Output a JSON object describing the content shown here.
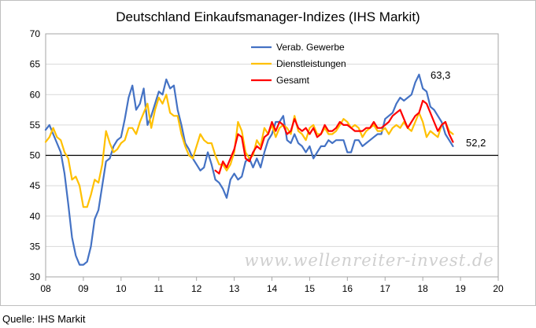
{
  "chart_data": {
    "type": "line",
    "title": "Deutschland Einkaufsmanager-Indizes (IHS Markit)",
    "xlabel": "",
    "ylabel": "",
    "xlim": [
      8,
      20
    ],
    "ylim": [
      30,
      70
    ],
    "x_ticks": [
      "08",
      "09",
      "10",
      "11",
      "12",
      "13",
      "14",
      "15",
      "16",
      "17",
      "18",
      "19",
      "20"
    ],
    "y_ticks": [
      "30",
      "35",
      "40",
      "45",
      "50",
      "55",
      "60",
      "65",
      "70"
    ],
    "reference_line": 50,
    "grid": "horizontal",
    "legend_position": "top-center",
    "series": [
      {
        "name": "Verab. Gewerbe",
        "color": "#4472c4",
        "x": [
          8.0,
          8.1,
          8.2,
          8.3,
          8.4,
          8.5,
          8.6,
          8.7,
          8.8,
          8.9,
          9.0,
          9.1,
          9.2,
          9.3,
          9.4,
          9.5,
          9.6,
          9.7,
          9.8,
          9.9,
          10.0,
          10.1,
          10.2,
          10.3,
          10.4,
          10.5,
          10.6,
          10.7,
          10.8,
          10.9,
          11.0,
          11.1,
          11.2,
          11.3,
          11.4,
          11.5,
          11.6,
          11.7,
          11.8,
          11.9,
          12.0,
          12.1,
          12.2,
          12.3,
          12.4,
          12.5,
          12.6,
          12.7,
          12.8,
          12.9,
          13.0,
          13.1,
          13.2,
          13.3,
          13.4,
          13.5,
          13.6,
          13.7,
          13.8,
          13.9,
          14.0,
          14.1,
          14.2,
          14.3,
          14.4,
          14.5,
          14.6,
          14.7,
          14.8,
          14.9,
          15.0,
          15.1,
          15.2,
          15.3,
          15.4,
          15.5,
          15.6,
          15.7,
          15.8,
          15.9,
          16.0,
          16.1,
          16.2,
          16.3,
          16.4,
          16.5,
          16.6,
          16.7,
          16.8,
          16.9,
          17.0,
          17.1,
          17.2,
          17.3,
          17.4,
          17.5,
          17.6,
          17.7,
          17.8,
          17.9,
          18.0,
          18.1,
          18.2,
          18.3,
          18.4,
          18.5,
          18.6,
          18.7,
          18.8
        ],
        "values": [
          54.2,
          55.0,
          53.5,
          52.0,
          50.5,
          47.0,
          42.0,
          36.5,
          33.5,
          32.0,
          32.0,
          32.5,
          35.0,
          39.5,
          41.0,
          45.0,
          49.0,
          49.5,
          51.5,
          52.5,
          53.0,
          56.0,
          59.5,
          61.5,
          57.5,
          58.5,
          61.0,
          55.0,
          56.5,
          58.5,
          60.5,
          60.0,
          62.5,
          61.0,
          61.5,
          57.5,
          55.0,
          52.0,
          51.0,
          49.5,
          48.5,
          47.5,
          48.0,
          50.5,
          48.5,
          46.0,
          45.5,
          44.5,
          43.0,
          46.0,
          47.0,
          46.0,
          46.5,
          49.0,
          49.5,
          48.0,
          49.5,
          48.0,
          50.5,
          52.5,
          53.5,
          55.5,
          55.5,
          56.5,
          52.5,
          52.0,
          53.5,
          52.0,
          51.5,
          50.5,
          51.5,
          49.5,
          50.5,
          51.5,
          51.5,
          52.5,
          52.0,
          52.5,
          52.5,
          52.5,
          50.5,
          50.5,
          52.5,
          52.5,
          51.5,
          52.0,
          52.5,
          53.0,
          53.5,
          53.5,
          56.0,
          56.5,
          57.0,
          58.5,
          59.5,
          59.0,
          59.5,
          60.0,
          62.0,
          63.3,
          61.0,
          60.5,
          58.0,
          57.5,
          56.5,
          55.5,
          53.5,
          52.5,
          51.5
        ]
      },
      {
        "name": "Dienstleistungen",
        "color": "#ffc000",
        "x": [
          8.0,
          8.1,
          8.2,
          8.3,
          8.4,
          8.5,
          8.6,
          8.7,
          8.8,
          8.9,
          9.0,
          9.1,
          9.2,
          9.3,
          9.4,
          9.5,
          9.6,
          9.7,
          9.8,
          9.9,
          10.0,
          10.1,
          10.2,
          10.3,
          10.4,
          10.5,
          10.6,
          10.7,
          10.8,
          10.9,
          11.0,
          11.1,
          11.2,
          11.3,
          11.4,
          11.5,
          11.6,
          11.7,
          11.8,
          11.9,
          12.0,
          12.1,
          12.2,
          12.3,
          12.4,
          12.5,
          12.6,
          12.7,
          12.8,
          12.9,
          13.0,
          13.1,
          13.2,
          13.3,
          13.4,
          13.5,
          13.6,
          13.7,
          13.8,
          13.9,
          14.0,
          14.1,
          14.2,
          14.3,
          14.4,
          14.5,
          14.6,
          14.7,
          14.8,
          14.9,
          15.0,
          15.1,
          15.2,
          15.3,
          15.4,
          15.5,
          15.6,
          15.7,
          15.8,
          15.9,
          16.0,
          16.1,
          16.2,
          16.3,
          16.4,
          16.5,
          16.6,
          16.7,
          16.8,
          16.9,
          17.0,
          17.1,
          17.2,
          17.3,
          17.4,
          17.5,
          17.6,
          17.7,
          17.8,
          17.9,
          18.0,
          18.1,
          18.2,
          18.3,
          18.4,
          18.5,
          18.6,
          18.7,
          18.8
        ],
        "values": [
          52.2,
          53.0,
          54.5,
          53.0,
          52.5,
          50.5,
          49.5,
          46.0,
          46.5,
          45.0,
          41.5,
          41.5,
          43.5,
          46.0,
          45.5,
          48.5,
          54.0,
          52.0,
          50.5,
          51.0,
          52.0,
          52.5,
          54.5,
          54.5,
          53.5,
          55.5,
          57.0,
          58.5,
          54.5,
          57.5,
          59.5,
          58.5,
          60.0,
          57.0,
          56.5,
          56.5,
          53.5,
          51.5,
          50.0,
          49.5,
          51.5,
          53.5,
          52.5,
          52.0,
          52.0,
          50.0,
          48.5,
          48.5,
          47.5,
          48.5,
          50.5,
          55.5,
          54.0,
          50.5,
          49.5,
          50.0,
          52.5,
          51.5,
          54.5,
          53.5,
          55.0,
          53.0,
          54.5,
          55.0,
          54.5,
          53.5,
          56.5,
          54.0,
          53.5,
          52.5,
          54.5,
          55.0,
          53.5,
          53.5,
          54.5,
          53.5,
          53.5,
          54.0,
          55.0,
          56.0,
          55.5,
          54.5,
          55.0,
          54.5,
          53.0,
          54.0,
          54.5,
          55.0,
          54.0,
          54.0,
          54.5,
          53.5,
          54.5,
          55.0,
          54.5,
          55.5,
          54.5,
          54.0,
          55.5,
          57.0,
          55.5,
          53.0,
          54.0,
          53.5,
          53.0,
          55.0,
          55.5,
          54.0,
          53.5
        ]
      },
      {
        "name": "Gesamt",
        "color": "#ff0000",
        "x": [
          12.5,
          12.6,
          12.7,
          12.8,
          12.9,
          13.0,
          13.1,
          13.2,
          13.3,
          13.4,
          13.5,
          13.6,
          13.7,
          13.8,
          13.9,
          14.0,
          14.1,
          14.2,
          14.3,
          14.4,
          14.5,
          14.6,
          14.7,
          14.8,
          14.9,
          15.0,
          15.1,
          15.2,
          15.3,
          15.4,
          15.5,
          15.6,
          15.7,
          15.8,
          15.9,
          16.0,
          16.1,
          16.2,
          16.3,
          16.4,
          16.5,
          16.6,
          16.7,
          16.8,
          16.9,
          17.0,
          17.1,
          17.2,
          17.3,
          17.4,
          17.5,
          17.6,
          17.7,
          17.8,
          17.9,
          18.0,
          18.1,
          18.2,
          18.3,
          18.4,
          18.5,
          18.6,
          18.7,
          18.8
        ],
        "values": [
          47.5,
          47.0,
          49.0,
          48.0,
          49.5,
          51.0,
          53.5,
          53.0,
          49.5,
          49.0,
          50.5,
          51.5,
          51.0,
          53.0,
          53.5,
          55.5,
          54.0,
          55.5,
          55.0,
          53.5,
          54.0,
          56.0,
          54.5,
          54.0,
          54.5,
          53.5,
          54.5,
          53.0,
          53.5,
          55.0,
          54.0,
          54.0,
          54.5,
          55.5,
          55.0,
          55.0,
          54.5,
          54.0,
          54.0,
          54.0,
          54.5,
          54.5,
          55.5,
          54.5,
          54.5,
          55.0,
          55.5,
          56.5,
          57.0,
          57.5,
          56.0,
          54.5,
          55.5,
          56.5,
          57.0,
          59.0,
          58.5,
          57.0,
          55.5,
          54.0,
          55.0,
          55.5,
          53.5,
          52.2
        ]
      }
    ],
    "annotations": [
      "63,3",
      "52,2"
    ]
  },
  "watermark": "www.wellenreiter-invest.de",
  "source": "Quelle: IHS Markit"
}
